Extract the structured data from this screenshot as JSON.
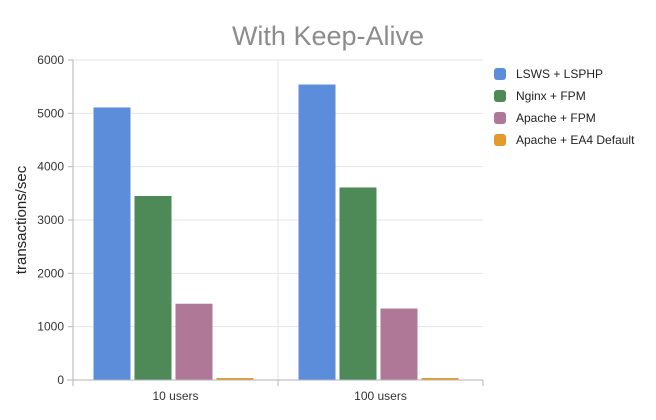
{
  "chart_data": {
    "type": "bar",
    "title": "With Keep-Alive",
    "xlabel": "",
    "ylabel": "transactions/sec",
    "categories": [
      "10 users",
      "100 users"
    ],
    "ylim": [
      0,
      6000
    ],
    "yticks": [
      0,
      1000,
      2000,
      3000,
      4000,
      5000,
      6000
    ],
    "grid": true,
    "legend_position": "right",
    "series": [
      {
        "name": "LSWS + LSPHP",
        "color": "#5b8ddb",
        "values": [
          5110,
          5540
        ]
      },
      {
        "name": "Nginx + FPM",
        "color": "#4e8a58",
        "values": [
          3450,
          3610
        ]
      },
      {
        "name": "Apache + FPM",
        "color": "#ae7896",
        "values": [
          1430,
          1340
        ]
      },
      {
        "name": "Apache + EA4 Default",
        "color": "#e39b2e",
        "values": [
          30,
          30
        ]
      }
    ]
  }
}
